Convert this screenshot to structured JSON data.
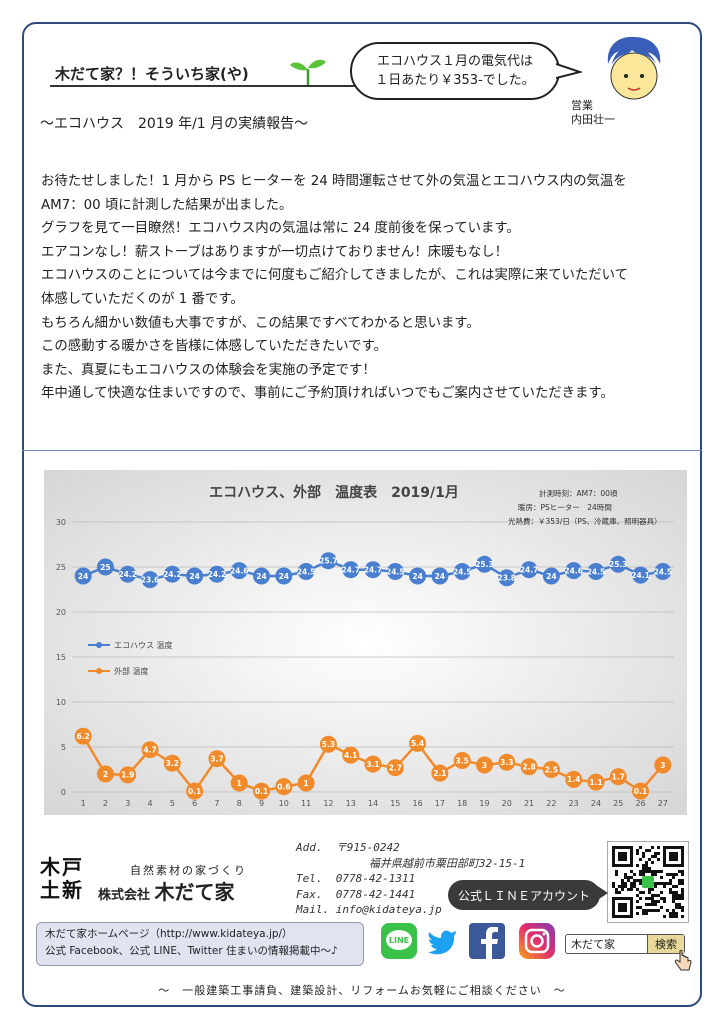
{
  "header": {
    "title": "木だて家？！そういち家(や)",
    "bubble_line1": "エコハウス１月の電気代は",
    "bubble_line2": "１日あたり￥353-でした。",
    "staff_role": "営業",
    "staff_name": "内田壮一",
    "subtitle": "～エコハウス　2019 年/1 月の実績報告～"
  },
  "body": [
    "お待たせしました！1 月から PS ヒーターを 24 時間運転させて外の気温とエコハウス内の気温を",
    "AM7：00 頃に計測した結果が出ました。",
    "グラフを見て一目瞭然！エコハウス内の気温は常に 24 度前後を保っています。",
    "エアコンなし！薪ストーブはありますが一切点けておりません！床暖もなし！",
    "エコハウスのことについては今までに何度もご紹介してきましたが、これは実際に来ていただいて",
    "体感していただくのが 1 番です。",
    "もちろん細かい数値も大事ですが、この結果ですべてわかると思います。",
    "この感動する暖かさを皆様に体感していただきたいです。",
    "また、真夏にもエコハウスの体験会を実施の予定です！",
    "年中通して快適な住まいですので、事前にご予約頂ければいつでもご案内させていただきます。"
  ],
  "chart_data": {
    "type": "line",
    "title": "エコハウス、外部　温度表　2019/1月",
    "notes": [
      "計測時刻：AM7：00頃",
      "暖房：PSヒーター　24時間",
      "光熱費：￥353/日（PS、冷蔵庫、照明器具）"
    ],
    "x": [
      1,
      2,
      3,
      4,
      5,
      6,
      7,
      8,
      9,
      10,
      11,
      12,
      13,
      14,
      15,
      16,
      17,
      18,
      19,
      20,
      21,
      22,
      23,
      24,
      25,
      26,
      27
    ],
    "ylim": [
      0,
      30
    ],
    "yticks": [
      0,
      5,
      10,
      15,
      20,
      25,
      30
    ],
    "grid": true,
    "legend_position": "left-middle",
    "series": [
      {
        "name": "エコハウス 温度",
        "color": "#4a7fcf",
        "values": [
          24,
          25,
          24.2,
          23.6,
          24.2,
          24,
          24.2,
          24.6,
          24,
          24,
          24.5,
          25.7,
          24.7,
          24.7,
          24.5,
          24,
          24,
          24.5,
          25.3,
          23.8,
          24.7,
          24,
          24.6,
          24.5,
          25.3,
          24.1,
          24.5
        ]
      },
      {
        "name": "外部 温度",
        "color": "#f08a2a",
        "values": [
          6.2,
          2,
          1.9,
          4.7,
          3.2,
          0.1,
          3.7,
          1,
          0.1,
          0.6,
          1,
          5.3,
          4.1,
          3.1,
          2.7,
          5.4,
          2.1,
          3.5,
          3,
          3.3,
          2.8,
          2.5,
          1.4,
          1.1,
          1.7,
          0.1,
          3
        ]
      }
    ]
  },
  "company": {
    "logo_text": [
      "木",
      "戸",
      "土",
      "新"
    ],
    "tagline": "自然素材の家づくり",
    "prefix": "株式会社",
    "name": "木だて家",
    "address_label": "Add.",
    "postal": "〒915-0242",
    "address": "福井県越前市粟田部町32-15-1",
    "tel_label": "Tel.",
    "tel": "0778-42-1311",
    "fax_label": "Fax.",
    "fax": "0778-42-1441",
    "mail_label": "Mail.",
    "mail": "info@kidateya.jp",
    "line_account": "公式ＬＩＮＥアカウント",
    "homepage_line1": "木だて家ホームページ（http://www.kidateya.jp/）",
    "homepage_line2": "公式 Facebook、公式 LINE、Twitter 住まいの情報掲載中～♪",
    "search_text": "木だて家",
    "search_button": "検索",
    "line_icon_text": "LINE"
  },
  "footer": "～　一般建築工事請負、建築設計、リフォームお気軽にご相談ください　～",
  "icons": [
    "sprout-icon",
    "avatar-icon",
    "logo-icon",
    "qr-code-icon",
    "line-icon",
    "twitter-icon",
    "facebook-icon",
    "instagram-icon",
    "pointer-hand-icon"
  ]
}
